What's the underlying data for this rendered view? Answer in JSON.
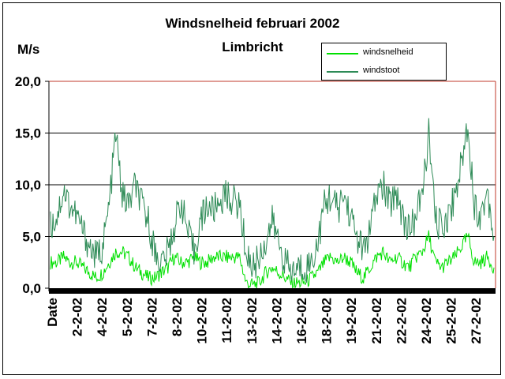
{
  "chart_data": {
    "type": "line",
    "title": "Windsnelheid februari 2002",
    "subtitle": "Limbricht",
    "ylabel": "M/s",
    "xlabel": "",
    "ylim": [
      0,
      20
    ],
    "yticks": [
      "0,0",
      "5,0",
      "10,0",
      "15,0",
      "20,0"
    ],
    "xticks": [
      "Date",
      "2-2-02",
      "4-2-02",
      "5-2-02",
      "7-2-02",
      "8-2-02",
      "10-2-02",
      "11-2-02",
      "13-2-02",
      "14-2-02",
      "16-2-02",
      "18-2-02",
      "19-2-02",
      "21-2-02",
      "22-2-02",
      "24-2-02",
      "25-2-02",
      "27-2-02"
    ],
    "grid": true,
    "legend_position": "top-right",
    "colors": {
      "windsnelheid": "#00e000",
      "windstoot": "#2e8b57",
      "plot_border": "#c0392b"
    },
    "series": [
      {
        "name": "windsnelheid",
        "values": [
          2.5,
          2.5,
          3.0,
          2.5,
          2.5,
          2.0,
          1.5,
          1.0,
          1.5,
          2.5,
          3.5,
          3.5,
          3.0,
          2.0,
          1.5,
          1.0,
          1.0,
          1.5,
          2.0,
          3.0,
          2.5,
          2.5,
          3.0,
          2.5,
          2.5,
          3.0,
          3.0,
          3.0,
          3.0,
          3.0,
          0.5,
          0.3,
          0.5,
          1.5,
          2.0,
          1.5,
          1.0,
          0.5,
          0.5,
          0.5,
          1.0,
          1.5,
          2.5,
          3.0,
          2.5,
          3.0,
          2.5,
          1.5,
          1.0,
          2.0,
          3.0,
          3.5,
          2.5,
          3.0,
          2.5,
          2.0,
          3.0,
          3.5,
          5.0,
          2.5,
          2.0,
          2.5,
          3.0,
          4.0,
          5.0,
          2.5,
          2.5,
          3.0,
          2.0
        ]
      },
      {
        "name": "windstoot",
        "values": [
          6.0,
          7.0,
          9.5,
          8.0,
          7.0,
          5.5,
          4.0,
          3.0,
          4.0,
          8.0,
          15.0,
          9.0,
          8.0,
          10.0,
          8.0,
          6.5,
          3.5,
          2.5,
          3.5,
          6.0,
          8.5,
          5.5,
          3.5,
          6.5,
          8.0,
          7.5,
          8.5,
          9.0,
          8.5,
          8.0,
          3.5,
          2.0,
          3.0,
          4.5,
          6.5,
          4.5,
          2.5,
          1.5,
          2.0,
          2.0,
          2.5,
          4.5,
          8.0,
          9.0,
          7.5,
          9.0,
          7.0,
          5.0,
          3.5,
          5.5,
          9.0,
          10.0,
          8.0,
          9.5,
          7.0,
          5.5,
          7.0,
          9.0,
          15.0,
          6.5,
          6.0,
          7.0,
          9.0,
          12.0,
          16.0,
          8.0,
          7.0,
          9.5,
          5.0
        ]
      }
    ]
  }
}
